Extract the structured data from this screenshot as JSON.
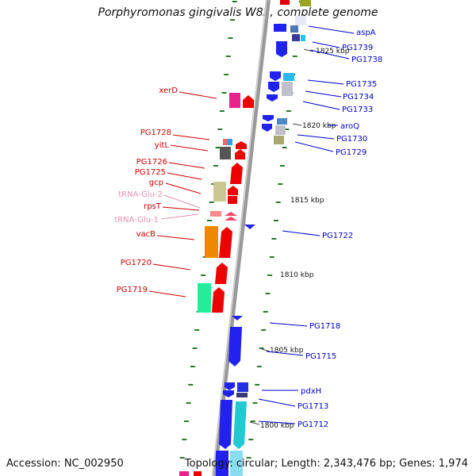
{
  "title": "Porphyromonas gingivalis W83, complete genome",
  "accession": "Accession: NC_002950",
  "summary": "Topology: circular; Length: 2,343,476 bp; Genes: 1,974",
  "colors": {
    "backbone": "#999999",
    "tick": "#2a7a2a",
    "left_label": "#cc0000",
    "right_label": "#0000cc",
    "trna_label": "#e58fb5",
    "kbp_label": "#111111"
  },
  "kbp_marks": [
    "1825 kbp",
    "1820 kbp",
    "1815 kbp",
    "1810 kbp",
    "1805 kbp",
    "1800 kbp"
  ],
  "left_labels": [
    {
      "text": "xerD",
      "type": "gene"
    },
    {
      "text": "PG1728",
      "type": "gene"
    },
    {
      "text": "yitL",
      "type": "gene"
    },
    {
      "text": "PG1726",
      "type": "gene"
    },
    {
      "text": "PG1725",
      "type": "gene"
    },
    {
      "text": "gcp",
      "type": "gene"
    },
    {
      "text": "tRNA-Glu-2",
      "type": "trna"
    },
    {
      "text": "rpsT",
      "type": "gene"
    },
    {
      "text": "tRNA-Glu-1",
      "type": "trna"
    },
    {
      "text": "vacB",
      "type": "gene"
    },
    {
      "text": "PG1720",
      "type": "gene"
    },
    {
      "text": "PG1719",
      "type": "gene"
    }
  ],
  "right_labels": [
    "aspA",
    "PG1739",
    "PG1738",
    "PG1735",
    "PG1734",
    "PG1733",
    "aroQ",
    "PG1730",
    "PG1729",
    "PG1722",
    "PG1718",
    "PG1715",
    "pdxH",
    "PG1713",
    "PG1712"
  ]
}
